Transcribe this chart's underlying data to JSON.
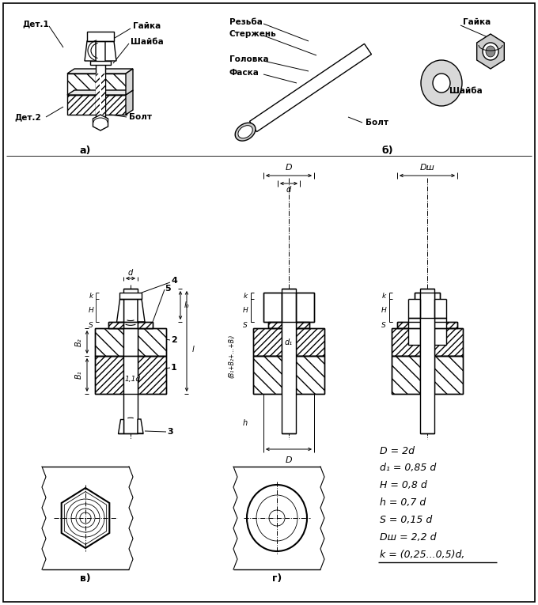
{
  "bg_color": "#ffffff",
  "title_a": "а)",
  "title_b": "б)",
  "title_v": "в)",
  "title_g": "г)",
  "label_det1": "Дет.1",
  "label_det2": "Дет.2",
  "label_gaika_a": "Гайка",
  "label_shaiba_a": "Шайба",
  "label_bolt_a": "Болт",
  "label_rezba": "Резьба",
  "label_sterghen": "Стержень",
  "label_golovka": "Головка",
  "label_faska": "Фаска",
  "label_bolt_b": "Болт",
  "label_gaika_b": "Гайка",
  "label_shaiba_b": "Шайба",
  "formulas": [
    "D = 2d",
    "d₁ = 0,85 d",
    "H = 0,8 d",
    "h = 0,7 d",
    "S = 0,15 d",
    "Dш = 2,2 d",
    "k = (0,25...0,5)d,"
  ]
}
